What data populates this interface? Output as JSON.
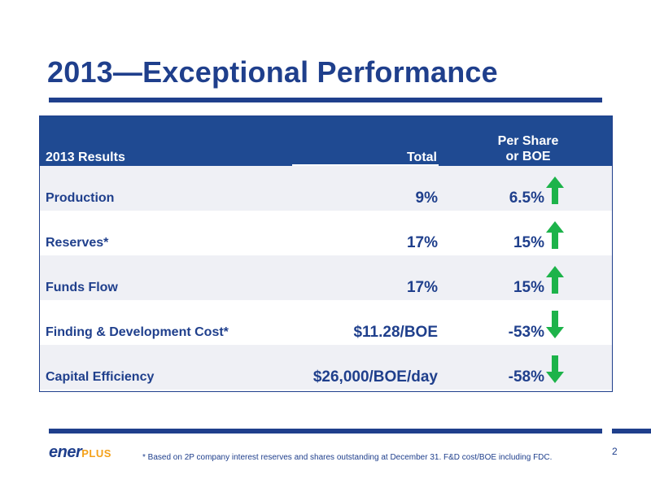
{
  "title": "2013—Exceptional Performance",
  "table": {
    "headers": {
      "results": "2013 Results",
      "total": "Total",
      "per_share_line1": "Per Share",
      "per_share_line2": "or BOE"
    },
    "rows": [
      {
        "label": "Production",
        "total": "9%",
        "per_share": "6.5%",
        "trend": "up"
      },
      {
        "label": "Reserves*",
        "total": "17%",
        "per_share": "15%",
        "trend": "up"
      },
      {
        "label": "Funds Flow",
        "total": "17%",
        "per_share": "15%",
        "trend": "up"
      },
      {
        "label": "Finding & Development Cost*",
        "total": "$11.28/BOE",
        "per_share": "-53%",
        "trend": "down"
      },
      {
        "label": "Capital Efficiency",
        "total": "$26,000/BOE/day",
        "per_share": "-58%",
        "trend": "down"
      }
    ]
  },
  "logo": {
    "part1": "ener",
    "part2": "PLUS"
  },
  "footnote": "* Based on 2P company interest reserves and shares outstanding at December 31.  F&D cost/BOE including FDC.",
  "page_number": "2",
  "colors": {
    "brand_blue": "#1f3f8c",
    "header_blue": "#1f4a92",
    "arrow_green": "#1db34a",
    "logo_orange": "#f4a11a"
  },
  "icons": {
    "up": "green-up-arrow-icon",
    "down": "green-down-arrow-icon"
  }
}
